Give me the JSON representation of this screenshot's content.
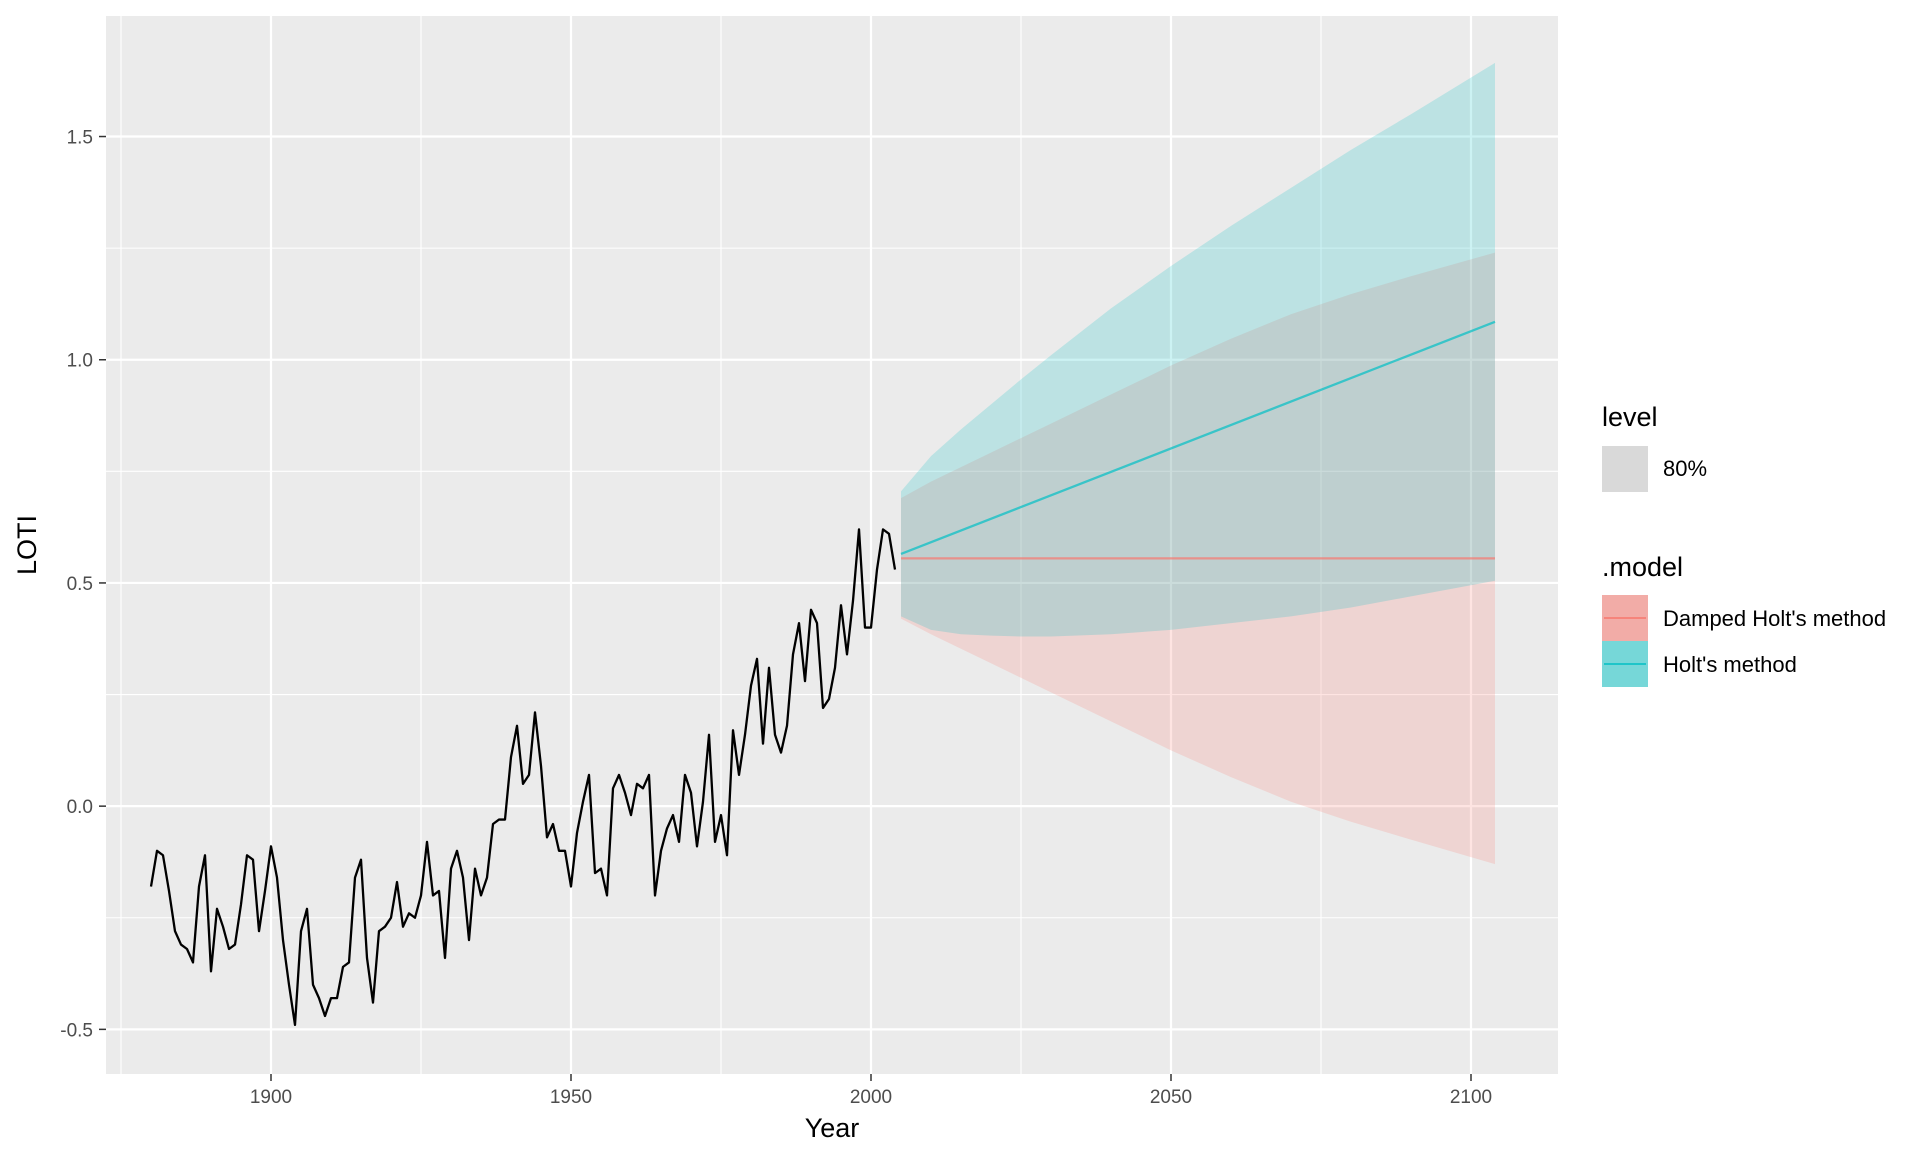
{
  "chart_data": {
    "type": "line",
    "title": "",
    "xlabel": "Year",
    "ylabel": "LOTI",
    "xlim": [
      1872.5,
      2114.5
    ],
    "ylim": [
      -0.6,
      1.77
    ],
    "x_ticks": [
      1900,
      1950,
      2000,
      2050,
      2100
    ],
    "x_minor": [
      1875,
      1925,
      1975,
      2025,
      2075
    ],
    "y_ticks": [
      -0.5,
      0.0,
      0.5,
      1.0,
      1.5
    ],
    "y_tick_labels": [
      "-0.5",
      "0.0",
      "0.5",
      "1.0",
      "1.5"
    ],
    "x_tick_labels": [
      "1900",
      "1950",
      "2000",
      "2050",
      "2100"
    ],
    "grid": true,
    "history": {
      "x_start": 1880,
      "values": [
        -0.18,
        -0.1,
        -0.11,
        -0.19,
        -0.28,
        -0.31,
        -0.32,
        -0.35,
        -0.18,
        -0.11,
        -0.37,
        -0.23,
        -0.27,
        -0.32,
        -0.31,
        -0.22,
        -0.11,
        -0.12,
        -0.28,
        -0.19,
        -0.09,
        -0.16,
        -0.3,
        -0.4,
        -0.49,
        -0.28,
        -0.23,
        -0.4,
        -0.43,
        -0.47,
        -0.43,
        -0.43,
        -0.36,
        -0.35,
        -0.16,
        -0.12,
        -0.34,
        -0.44,
        -0.28,
        -0.27,
        -0.25,
        -0.17,
        -0.27,
        -0.24,
        -0.25,
        -0.2,
        -0.08,
        -0.2,
        -0.19,
        -0.34,
        -0.14,
        -0.1,
        -0.16,
        -0.3,
        -0.14,
        -0.2,
        -0.16,
        -0.04,
        -0.03,
        -0.03,
        0.11,
        0.18,
        0.05,
        0.07,
        0.21,
        0.09,
        -0.07,
        -0.04,
        -0.1,
        -0.1,
        -0.18,
        -0.06,
        0.01,
        0.07,
        -0.15,
        -0.14,
        -0.2,
        0.04,
        0.07,
        0.03,
        -0.02,
        0.05,
        0.04,
        0.07,
        -0.2,
        -0.1,
        -0.05,
        -0.02,
        -0.08,
        0.07,
        0.03,
        -0.09,
        0.01,
        0.16,
        -0.08,
        -0.02,
        -0.11,
        0.17,
        0.07,
        0.16,
        0.27,
        0.33,
        0.14,
        0.31,
        0.16,
        0.12,
        0.18,
        0.34,
        0.41,
        0.28,
        0.44,
        0.41,
        0.22,
        0.24,
        0.31,
        0.45,
        0.34,
        0.46,
        0.62,
        0.4,
        0.4,
        0.53,
        0.62,
        0.61,
        0.53
      ]
    },
    "series": [
      {
        "name": "Damped Holt's method",
        "color": "#F8766D",
        "x_start": 2005,
        "x_end": 2104,
        "forecast": [
          0.555,
          0.555
        ],
        "lower_80": [
          [
            2005,
            0.42
          ],
          [
            2010,
            0.385
          ],
          [
            2020,
            0.32
          ],
          [
            2030,
            0.255
          ],
          [
            2040,
            0.19
          ],
          [
            2050,
            0.125
          ],
          [
            2060,
            0.065
          ],
          [
            2070,
            0.01
          ],
          [
            2080,
            -0.035
          ],
          [
            2090,
            -0.075
          ],
          [
            2104,
            -0.13
          ]
        ],
        "upper_80": [
          [
            2005,
            0.69
          ],
          [
            2010,
            0.727
          ],
          [
            2020,
            0.792
          ],
          [
            2030,
            0.857
          ],
          [
            2040,
            0.922
          ],
          [
            2050,
            0.987
          ],
          [
            2060,
            1.047
          ],
          [
            2070,
            1.102
          ],
          [
            2080,
            1.147
          ],
          [
            2090,
            1.187
          ],
          [
            2104,
            1.24
          ]
        ]
      },
      {
        "name": "Holt's method",
        "color": "#00BFC4",
        "x_start": 2005,
        "x_end": 2104,
        "forecast": [
          0.565,
          1.085
        ],
        "lower_80": [
          [
            2005,
            0.425
          ],
          [
            2010,
            0.395
          ],
          [
            2015,
            0.385
          ],
          [
            2020,
            0.382
          ],
          [
            2025,
            0.38
          ],
          [
            2030,
            0.38
          ],
          [
            2040,
            0.385
          ],
          [
            2050,
            0.395
          ],
          [
            2060,
            0.41
          ],
          [
            2070,
            0.425
          ],
          [
            2080,
            0.445
          ],
          [
            2090,
            0.47
          ],
          [
            2104,
            0.505
          ]
        ],
        "upper_80": [
          [
            2005,
            0.705
          ],
          [
            2010,
            0.784
          ],
          [
            2015,
            0.844
          ],
          [
            2020,
            0.9
          ],
          [
            2025,
            0.956
          ],
          [
            2030,
            1.01
          ],
          [
            2040,
            1.115
          ],
          [
            2050,
            1.21
          ],
          [
            2060,
            1.3
          ],
          [
            2070,
            1.385
          ],
          [
            2080,
            1.47
          ],
          [
            2090,
            1.55
          ],
          [
            2104,
            1.665
          ]
        ]
      }
    ],
    "history_color": "#000000",
    "panel_color": "#EBEBEB",
    "grid_color": "#FFFFFF",
    "legend": {
      "placement": "right",
      "level_title": "level",
      "level_label": "80%",
      "model_title": ".model",
      "model_labels": [
        "Damped Holt's method",
        "Holt's method"
      ]
    }
  }
}
